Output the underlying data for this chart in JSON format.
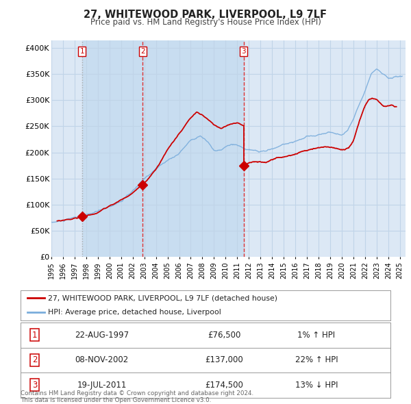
{
  "title": "27, WHITEWOOD PARK, LIVERPOOL, L9 7LF",
  "subtitle": "Price paid vs. HM Land Registry's House Price Index (HPI)",
  "ylim": [
    0,
    400000
  ],
  "yticks": [
    0,
    50000,
    100000,
    150000,
    200000,
    250000,
    300000,
    350000,
    400000
  ],
  "ytick_labels": [
    "£0",
    "£50K",
    "£100K",
    "£150K",
    "£200K",
    "£250K",
    "£300K",
    "£350K",
    "£400K"
  ],
  "xlim_start": 1995.0,
  "xlim_end": 2025.5,
  "sale_color": "#cc0000",
  "hpi_color": "#7aaddc",
  "sale_label": "27, WHITEWOOD PARK, LIVERPOOL, L9 7LF (detached house)",
  "hpi_label": "HPI: Average price, detached house, Liverpool",
  "transactions": [
    {
      "date": 1997.644,
      "price": 76500,
      "label": "1",
      "vline_style": "dotted_gray"
    },
    {
      "date": 2002.856,
      "price": 137000,
      "label": "2",
      "vline_style": "dashed_red"
    },
    {
      "date": 2011.542,
      "price": 174500,
      "label": "3",
      "vline_style": "dashed_red"
    }
  ],
  "table_rows": [
    {
      "num": "1",
      "date": "22-AUG-1997",
      "price": "£76,500",
      "change": "1% ↑ HPI"
    },
    {
      "num": "2",
      "date": "08-NOV-2002",
      "price": "£137,000",
      "change": "22% ↑ HPI"
    },
    {
      "num": "3",
      "date": "19-JUL-2011",
      "price": "£174,500",
      "change": "13% ↓ HPI"
    }
  ],
  "footnote1": "Contains HM Land Registry data © Crown copyright and database right 2024.",
  "footnote2": "This data is licensed under the Open Government Licence v3.0.",
  "plot_bg_color": "#dce8f5",
  "grid_color": "#c5d8ee",
  "fig_bg_color": "#ffffff",
  "dashed_vline_color": "#dd3333",
  "dotted_vline_color": "#aaaaaa",
  "shade_color": "#c8ddf0",
  "marker_color": "#cc0000"
}
